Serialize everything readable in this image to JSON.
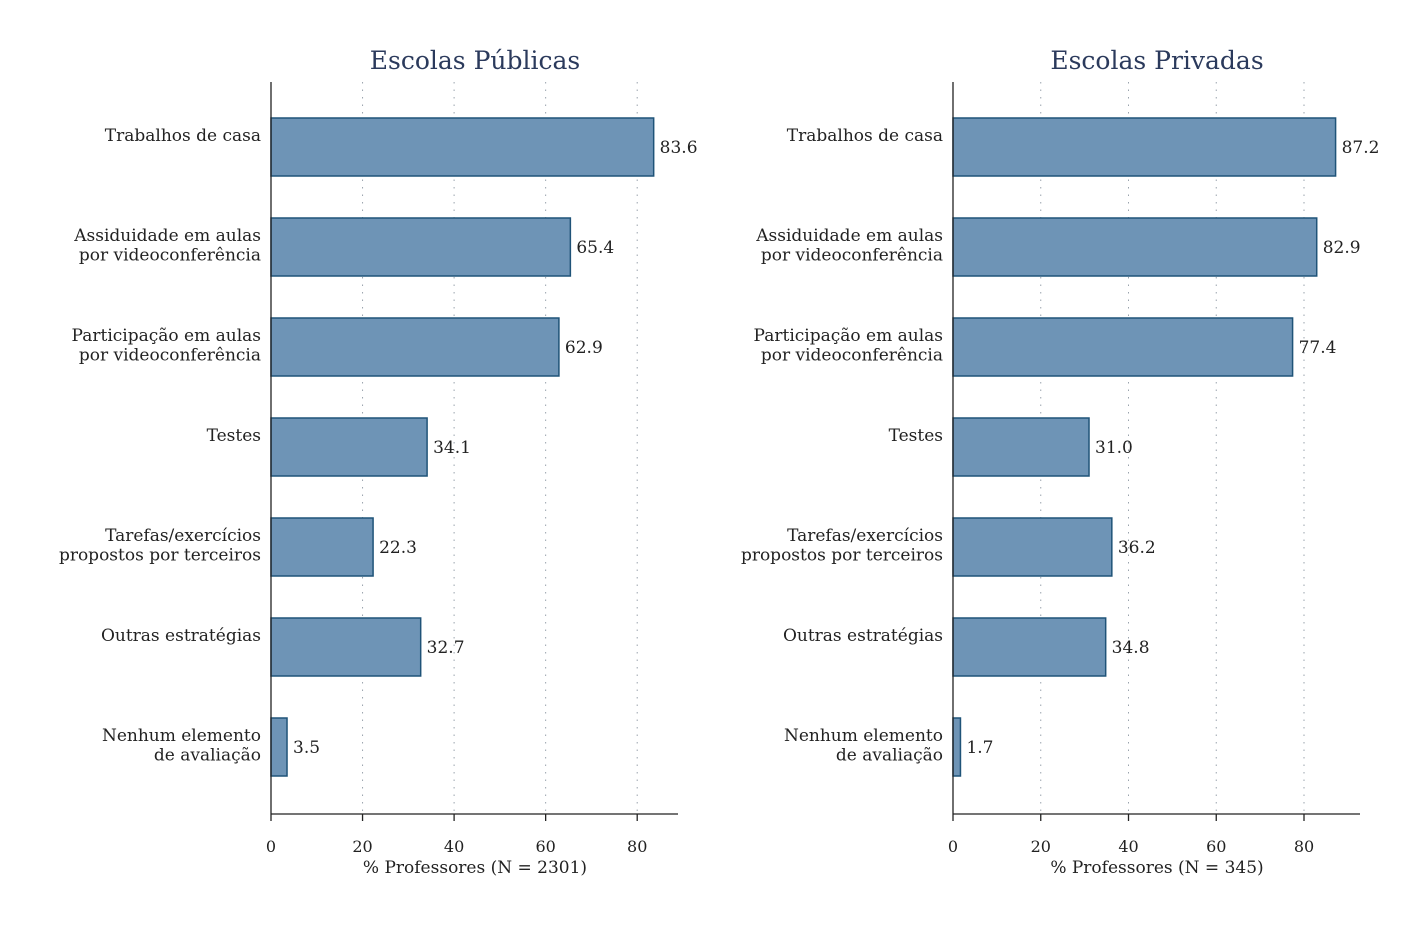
{
  "chart_data": [
    {
      "type": "bar",
      "orientation": "horizontal",
      "title": "Escolas Públicas",
      "xlabel": "% Professores (N = 2301)",
      "categories": [
        [
          "Trabalhos de casa"
        ],
        [
          "Assiduidade em aulas",
          "por videoconferência"
        ],
        [
          "Participação em aulas",
          "por videoconferência"
        ],
        [
          "Testes"
        ],
        [
          "Tarefas/exercícios",
          "propostos por terceiros"
        ],
        [
          "Outras estratégias"
        ],
        [
          "Nenhum elemento",
          "de avaliação"
        ]
      ],
      "values": [
        83.6,
        65.4,
        62.9,
        34.1,
        22.3,
        32.7,
        3.5
      ],
      "value_labels": [
        "83.6",
        "65.4",
        "62.9",
        "34.1",
        "22.3",
        "32.7",
        "3.5"
      ],
      "xticks": [
        0,
        20,
        40,
        60,
        80
      ],
      "xlim": [
        0,
        89
      ],
      "grid": "vertical-dotted"
    },
    {
      "type": "bar",
      "orientation": "horizontal",
      "title": "Escolas Privadas",
      "xlabel": "% Professores (N = 345)",
      "categories": [
        [
          "Trabalhos de casa"
        ],
        [
          "Assiduidade em aulas",
          "por videoconferência"
        ],
        [
          "Participação em aulas",
          "por videoconferência"
        ],
        [
          "Testes"
        ],
        [
          "Tarefas/exercícios",
          "propostos por terceiros"
        ],
        [
          "Outras estratégias"
        ],
        [
          "Nenhum elemento",
          "de avaliação"
        ]
      ],
      "values": [
        87.2,
        82.9,
        77.4,
        31.0,
        36.2,
        34.8,
        1.7
      ],
      "value_labels": [
        "87.2",
        "82.9",
        "77.4",
        "31.0",
        "36.2",
        "34.8",
        "1.7"
      ],
      "xticks": [
        0,
        20,
        40,
        60,
        80
      ],
      "xlim": [
        0,
        92.5
      ],
      "grid": "vertical-dotted"
    }
  ],
  "colors": {
    "bar_fill": "#6e94b6",
    "bar_edge": "#1f5378",
    "title": "#2b3a5c"
  }
}
